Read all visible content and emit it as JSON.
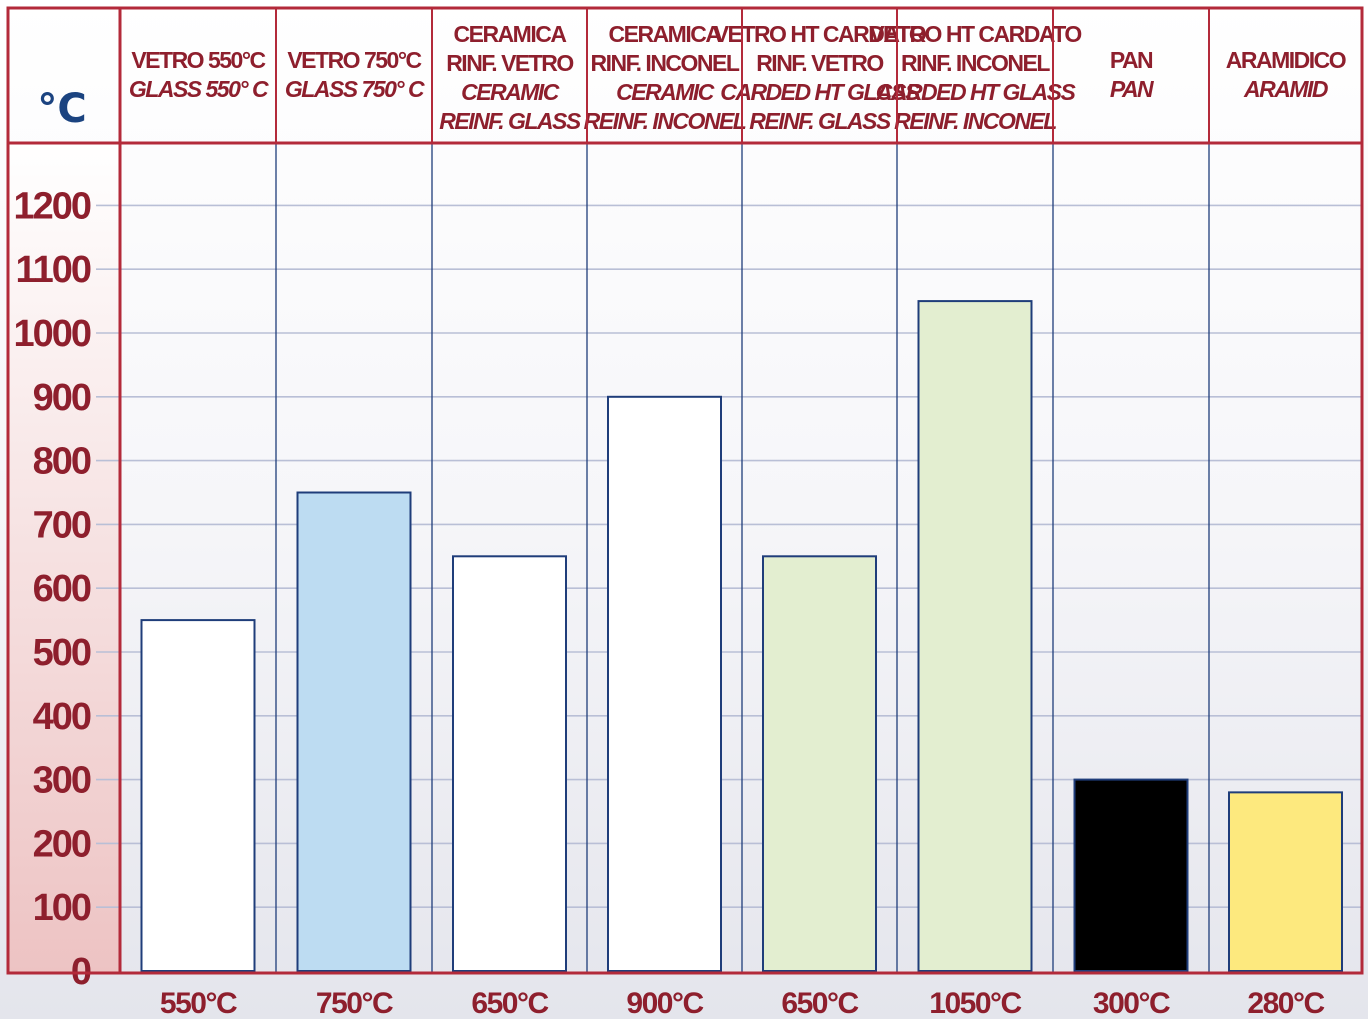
{
  "colors": {
    "frame": "#b32a3a",
    "grid_blue": "#1f3d7a",
    "gridline": "#b9bfd6",
    "unit_blue": "#1b4380",
    "text_red": "#8e1f2d",
    "text_blue": "#27477f",
    "bar_stroke": "#1f3d7a",
    "axis_bg_top": "#ffffff",
    "axis_bg_bottom": "#edc3c3"
  },
  "chart_data": {
    "type": "bar",
    "unit_label": "°C",
    "ylim": [
      0,
      1300
    ],
    "yticks": [
      1200,
      1100,
      1000,
      900,
      800,
      700,
      600,
      500,
      400,
      300,
      200,
      100,
      0
    ],
    "grid": true,
    "categories": [
      {
        "lines": [
          "VETRO 550°C"
        ],
        "italic_lines": [
          "GLASS 550° C"
        ],
        "value": 550,
        "value_label": "550°C",
        "color": "#ffffff"
      },
      {
        "lines": [
          "VETRO 750°C"
        ],
        "italic_lines": [
          "GLASS 750° C"
        ],
        "value": 750,
        "value_label": "750°C",
        "color": "#bddcf2"
      },
      {
        "lines": [
          "CERAMICA",
          "RINF. VETRO"
        ],
        "italic_lines": [
          "CERAMIC",
          "REINF. GLASS"
        ],
        "value": 650,
        "value_label": "650°C",
        "color": "#ffffff"
      },
      {
        "lines": [
          "CERAMICA",
          "RINF. INCONEL"
        ],
        "italic_lines": [
          "CERAMIC",
          "REINF. INCONEL"
        ],
        "value": 900,
        "value_label": "900°C",
        "color": "#ffffff"
      },
      {
        "lines": [
          "VETRO HT CARDATO",
          "RINF. VETRO"
        ],
        "italic_lines": [
          "CARDED HT GLASS",
          "REINF. GLASS"
        ],
        "value": 650,
        "value_label": "650°C",
        "color": "#e3eed0"
      },
      {
        "lines": [
          "VETRO HT CARDATO",
          "RINF. INCONEL"
        ],
        "italic_lines": [
          "CARDED HT GLASS",
          "REINF. INCONEL"
        ],
        "value": 1050,
        "value_label": "1050°C",
        "color": "#e3eed0"
      },
      {
        "lines": [
          "PAN"
        ],
        "italic_lines": [
          "PAN"
        ],
        "value": 300,
        "value_label": "300°C",
        "color": "#000000"
      },
      {
        "lines": [
          "ARAMIDICO"
        ],
        "italic_lines": [
          "ARAMID"
        ],
        "value": 280,
        "value_label": "280°C",
        "color": "#fde97e"
      }
    ]
  }
}
